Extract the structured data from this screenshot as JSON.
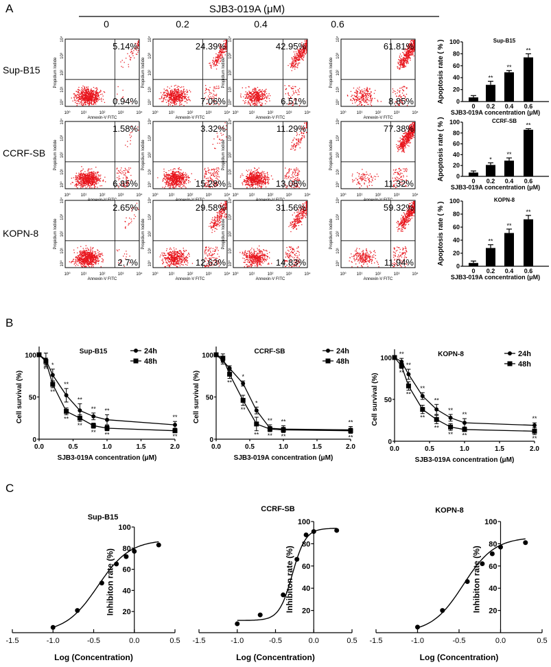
{
  "panel_labels": {
    "a": "A",
    "b": "B",
    "c": "C"
  },
  "panel_a": {
    "title": "SJB3-019A (μM)",
    "concentrations": [
      "0",
      "0.2",
      "0.4",
      "0.6"
    ],
    "cell_lines": [
      "Sup-B15",
      "CCRF-SB",
      "KOPN-8"
    ],
    "flow_axis": {
      "xlabel": "Annexin-V FITC",
      "ylabel": "Propidium Iodide",
      "ticks": [
        "10⁰",
        "10¹",
        "10²",
        "10³",
        "10⁴"
      ]
    },
    "dot_color": "#e8141c"
  },
  "chart_data": [
    {
      "type": "scatter",
      "name": "flow-cytometry-quadrants",
      "rows": [
        "Sup-B15",
        "CCRF-SB",
        "KOPN-8"
      ],
      "columns": [
        "0",
        "0.2",
        "0.4",
        "0.6"
      ],
      "upper_right_pct": [
        [
          "5.14%",
          "24.39%",
          "42.95%",
          "61.81%"
        ],
        [
          "1.58%",
          "3.32%",
          "11.29%",
          "77.38%"
        ],
        [
          "2.65%",
          "29.58%",
          "31.56%",
          "59.32%"
        ]
      ],
      "lower_right_pct": [
        [
          "0.94%",
          "7.06%",
          "6.51%",
          "8.85%"
        ],
        [
          "6.85%",
          "15.28%",
          "13.08%",
          "11.32%"
        ],
        [
          "2.7%",
          "12.63%",
          "14.83%",
          "11.94%"
        ]
      ],
      "xscale": "log",
      "yscale": "log",
      "xlim": [
        1,
        10000
      ],
      "ylim": [
        1,
        10000
      ]
    },
    {
      "type": "bar",
      "title": "Sup-B15",
      "categories": [
        "0",
        "0.2",
        "0.4",
        "0.6"
      ],
      "values": [
        7,
        28,
        49,
        74
      ],
      "errors": [
        3,
        6,
        3,
        6
      ],
      "significance": [
        "",
        "**",
        "**",
        "**"
      ],
      "xlabel": "SJB3-019A concentration (μM)",
      "ylabel": "Apoptosis rate ( % )",
      "ylim": [
        0,
        100
      ],
      "yticks": [
        "0",
        "20",
        "40",
        "60",
        "80",
        "100"
      ]
    },
    {
      "type": "bar",
      "title": "CCRF-SB",
      "categories": [
        "0",
        "0.2",
        "0.4",
        "0.6"
      ],
      "values": [
        7,
        21,
        29,
        86
      ],
      "errors": [
        3,
        4,
        5,
        2
      ],
      "significance": [
        "",
        "*",
        "**",
        "**"
      ],
      "xlabel": "SJB3-019A concentration (μM)",
      "ylabel": "Apoptosis rate ( % )",
      "ylim": [
        0,
        100
      ],
      "yticks": [
        "0",
        "20",
        "40",
        "60",
        "80",
        "100"
      ]
    },
    {
      "type": "bar",
      "title": "KOPN-8",
      "categories": [
        "0",
        "0.2",
        "0.4",
        "0.6"
      ],
      "values": [
        5,
        28,
        51,
        72
      ],
      "errors": [
        3,
        5,
        6,
        6
      ],
      "significance": [
        "",
        "**",
        "**",
        "**"
      ],
      "xlabel": "SJB3-019A concentration (μM)",
      "ylabel": "Apoptosis rate ( % )",
      "ylim": [
        0,
        100
      ],
      "yticks": [
        "0",
        "20",
        "40",
        "60",
        "80",
        "100"
      ]
    },
    {
      "type": "line",
      "title": "Sup-B15",
      "x": [
        0,
        0.1,
        0.2,
        0.4,
        0.6,
        0.8,
        1.0,
        2.0
      ],
      "series": [
        {
          "name": "24h",
          "values": [
            100,
            94,
            76,
            52,
            34,
            27,
            23,
            17
          ],
          "errors": [
            0,
            8,
            7,
            8,
            8,
            4,
            6,
            4
          ],
          "significance": [
            "",
            "",
            "*",
            "**",
            "**",
            "**",
            "**",
            "**"
          ]
        },
        {
          "name": "48h",
          "values": [
            100,
            92,
            65,
            33,
            25,
            16,
            13,
            10
          ],
          "errors": [
            0,
            4,
            4,
            4,
            4,
            3,
            3,
            2
          ],
          "significance": [
            "",
            "**",
            "**",
            "**",
            "**",
            "**",
            "**",
            "**"
          ]
        }
      ],
      "xlabel": "SJB3-019A concentration (μM)",
      "ylabel": "Cell survival (%)",
      "xlim": [
        0,
        2
      ],
      "ylim": [
        0,
        100
      ],
      "xticks": [
        "0.0",
        "0.5",
        "1.0",
        "1.5",
        "2.0"
      ],
      "yticks": [
        "0",
        "50",
        "100"
      ],
      "legend": "top-right"
    },
    {
      "type": "line",
      "title": "CCRF-SB",
      "x": [
        0,
        0.1,
        0.2,
        0.4,
        0.6,
        0.8,
        1.0,
        2.0
      ],
      "series": [
        {
          "name": "24h",
          "values": [
            100,
            93,
            84,
            66,
            34,
            13,
            12,
            11
          ],
          "errors": [
            0,
            4,
            3,
            3,
            4,
            4,
            4,
            4
          ],
          "significance": [
            "",
            "",
            "",
            "*",
            "*",
            "**",
            "**",
            "**"
          ]
        },
        {
          "name": "48h",
          "values": [
            100,
            96,
            77,
            46,
            18,
            12,
            11,
            10
          ],
          "errors": [
            0,
            5,
            5,
            6,
            8,
            3,
            3,
            3
          ],
          "significance": [
            "",
            "",
            "**",
            "**",
            "**",
            "**",
            "**",
            "**"
          ]
        }
      ],
      "xlabel": "SJB3-019A concentration (μM)",
      "ylabel": "Cell survival (%)",
      "xlim": [
        0,
        2
      ],
      "ylim": [
        0,
        100
      ],
      "xticks": [
        "0.0",
        "0.5",
        "1.0",
        "1.5",
        "2.0"
      ],
      "yticks": [
        "0",
        "50",
        "100"
      ],
      "legend": "top-right"
    },
    {
      "type": "line",
      "title": "KOPN-8",
      "x": [
        0,
        0.1,
        0.2,
        0.4,
        0.6,
        0.8,
        1.0,
        2.0
      ],
      "series": [
        {
          "name": "24h",
          "values": [
            100,
            95,
            80,
            54,
            38,
            28,
            22,
            19
          ],
          "errors": [
            0,
            4,
            6,
            4,
            6,
            4,
            5,
            3
          ],
          "significance": [
            "",
            "**",
            "**",
            "**",
            "**",
            "**",
            "**",
            "**"
          ]
        },
        {
          "name": "48h",
          "values": [
            100,
            90,
            66,
            38,
            26,
            17,
            14,
            12
          ],
          "errors": [
            0,
            3,
            5,
            5,
            5,
            4,
            2,
            4
          ],
          "significance": [
            "",
            "**",
            "**",
            "**",
            "**",
            "**",
            "**",
            "**"
          ]
        }
      ],
      "xlabel": "SJB3-019A concentration (μM)",
      "ylabel": "Cell survival (%)",
      "xlim": [
        0,
        2
      ],
      "ylim": [
        0,
        100
      ],
      "xticks": [
        "0.0",
        "0.5",
        "1.0",
        "1.5",
        "2.0"
      ],
      "yticks": [
        "0",
        "50",
        "100"
      ],
      "legend": "top-right"
    },
    {
      "type": "scatter",
      "title": "Sup-B15",
      "x": [
        -1.0,
        -0.7,
        -0.4,
        -0.22,
        -0.1,
        0.0,
        0.3
      ],
      "y": [
        5,
        21,
        47,
        65,
        72,
        77,
        83
      ],
      "fit": "sigmoidal dose-response",
      "xlabel": "Log (Concentration)",
      "ylabel": "Inhibiton rate (%)",
      "xlim": [
        -1.5,
        0.5
      ],
      "ylim": [
        0,
        100
      ],
      "xticks": [
        "-1.5",
        "-1.0",
        "-0.5",
        "0.0",
        "0.5"
      ],
      "yticks": [
        "20",
        "40",
        "60",
        "80",
        "100"
      ]
    },
    {
      "type": "scatter",
      "title": "CCRF-SB",
      "x": [
        -1.0,
        -0.7,
        -0.4,
        -0.22,
        -0.1,
        0.0,
        0.3
      ],
      "y": [
        8,
        16,
        34,
        66,
        88,
        91,
        92
      ],
      "fit": "sigmoidal dose-response",
      "xlabel": "Log (Concentration)",
      "ylabel": "Inhibiton rate (%)",
      "xlim": [
        -1.5,
        0.5
      ],
      "ylim": [
        0,
        100
      ],
      "xticks": [
        "-1.5",
        "-1.0",
        "-0.5",
        "0.0",
        "0.5"
      ],
      "yticks": [
        "20",
        "40",
        "60",
        "80",
        "100"
      ]
    },
    {
      "type": "scatter",
      "title": "KOPN-8",
      "x": [
        -1.0,
        -0.7,
        -0.4,
        -0.22,
        -0.1,
        0.0,
        0.3
      ],
      "y": [
        5,
        20,
        46,
        62,
        71,
        77,
        81
      ],
      "fit": "sigmoidal dose-response",
      "xlabel": "Log (Concentration)",
      "ylabel": "Inhibiton rate (%)",
      "xlim": [
        -1.5,
        0.5
      ],
      "ylim": [
        0,
        100
      ],
      "xticks": [
        "-1.5",
        "-1.0",
        "-0.5",
        "0.0",
        "0.5"
      ],
      "yticks": [
        "20",
        "40",
        "60",
        "80",
        "100"
      ]
    }
  ]
}
